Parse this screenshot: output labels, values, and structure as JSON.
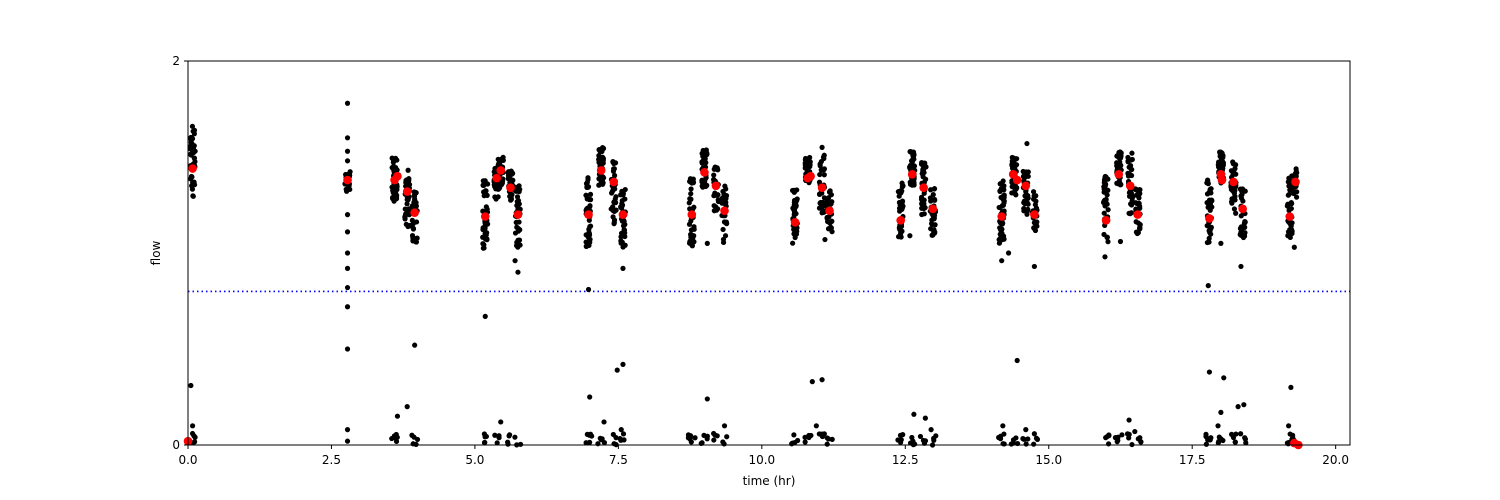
{
  "chart_data": {
    "type": "scatter",
    "title": "",
    "xlabel": "time (hr)",
    "ylabel": "flow",
    "xlim": [
      0,
      20.25
    ],
    "ylim": [
      0,
      2
    ],
    "x_ticks": [
      0,
      2.5,
      5,
      7.5,
      10,
      12.5,
      15,
      17.5,
      20
    ],
    "x_tick_labels": [
      "0.0",
      "2.5",
      "5.0",
      "7.5",
      "10.0",
      "12.5",
      "15.0",
      "17.5",
      "20.0"
    ],
    "y_ticks": [
      0,
      2
    ],
    "y_tick_labels": [
      "0",
      "2"
    ],
    "grid": false,
    "legend": "none",
    "colors": {
      "raw": "#000000",
      "mean": "#ff0000",
      "threshold": "#0000ff"
    },
    "threshold": {
      "y": 0.8,
      "style": "dotted",
      "color": "#0000ff"
    },
    "raw_clusters": [
      {
        "x": 0.08,
        "ymin": 1.29,
        "ymax": 1.67,
        "n": 45,
        "low": 5
      },
      {
        "x": 2.78,
        "ymin": 1.32,
        "ymax": 1.45,
        "n": 18,
        "low": 0
      },
      {
        "x": 3.6,
        "ymin": 1.26,
        "ymax": 1.5,
        "n": 45,
        "low": 6
      },
      {
        "x": 3.82,
        "ymin": 1.13,
        "ymax": 1.44,
        "n": 35,
        "low": 0
      },
      {
        "x": 3.95,
        "ymin": 1.05,
        "ymax": 1.32,
        "n": 30,
        "low": 5
      },
      {
        "x": 5.18,
        "ymin": 1.02,
        "ymax": 1.39,
        "n": 40,
        "low": 5
      },
      {
        "x": 5.38,
        "ymin": 1.28,
        "ymax": 1.45,
        "n": 30,
        "low": 4
      },
      {
        "x": 5.45,
        "ymin": 1.34,
        "ymax": 1.5,
        "n": 30,
        "low": 0
      },
      {
        "x": 5.62,
        "ymin": 1.26,
        "ymax": 1.43,
        "n": 35,
        "low": 4
      },
      {
        "x": 5.75,
        "ymin": 1.03,
        "ymax": 1.36,
        "n": 35,
        "low": 3
      },
      {
        "x": 6.98,
        "ymin": 1.03,
        "ymax": 1.4,
        "n": 45,
        "low": 6
      },
      {
        "x": 7.2,
        "ymin": 1.35,
        "ymax": 1.55,
        "n": 45,
        "low": 5
      },
      {
        "x": 7.42,
        "ymin": 1.15,
        "ymax": 1.5,
        "n": 35,
        "low": 4
      },
      {
        "x": 7.58,
        "ymin": 1.03,
        "ymax": 1.34,
        "n": 35,
        "low": 4
      },
      {
        "x": 8.78,
        "ymin": 1.03,
        "ymax": 1.4,
        "n": 40,
        "low": 6
      },
      {
        "x": 9.0,
        "ymin": 1.34,
        "ymax": 1.55,
        "n": 45,
        "low": 5
      },
      {
        "x": 9.2,
        "ymin": 1.2,
        "ymax": 1.45,
        "n": 30,
        "low": 4
      },
      {
        "x": 9.35,
        "ymin": 1.05,
        "ymax": 1.35,
        "n": 30,
        "low": 3
      },
      {
        "x": 10.58,
        "ymin": 1.05,
        "ymax": 1.33,
        "n": 40,
        "low": 5
      },
      {
        "x": 10.8,
        "ymin": 1.36,
        "ymax": 1.5,
        "n": 40,
        "low": 5
      },
      {
        "x": 11.05,
        "ymin": 1.2,
        "ymax": 1.52,
        "n": 35,
        "low": 5
      },
      {
        "x": 11.18,
        "ymin": 1.1,
        "ymax": 1.33,
        "n": 30,
        "low": 4
      },
      {
        "x": 12.42,
        "ymin": 1.08,
        "ymax": 1.37,
        "n": 40,
        "low": 5
      },
      {
        "x": 12.62,
        "ymin": 1.35,
        "ymax": 1.53,
        "n": 45,
        "low": 5
      },
      {
        "x": 12.82,
        "ymin": 1.2,
        "ymax": 1.5,
        "n": 35,
        "low": 4
      },
      {
        "x": 12.98,
        "ymin": 1.08,
        "ymax": 1.34,
        "n": 30,
        "low": 4
      },
      {
        "x": 14.18,
        "ymin": 1.05,
        "ymax": 1.38,
        "n": 45,
        "low": 6
      },
      {
        "x": 14.4,
        "ymin": 1.3,
        "ymax": 1.5,
        "n": 40,
        "low": 5
      },
      {
        "x": 14.6,
        "ymin": 1.2,
        "ymax": 1.43,
        "n": 35,
        "low": 4
      },
      {
        "x": 14.75,
        "ymin": 1.1,
        "ymax": 1.34,
        "n": 25,
        "low": 4
      },
      {
        "x": 16.0,
        "ymin": 1.05,
        "ymax": 1.4,
        "n": 40,
        "low": 5
      },
      {
        "x": 16.22,
        "ymin": 1.35,
        "ymax": 1.53,
        "n": 45,
        "low": 5
      },
      {
        "x": 16.42,
        "ymin": 1.2,
        "ymax": 1.5,
        "n": 35,
        "low": 4
      },
      {
        "x": 16.55,
        "ymin": 1.1,
        "ymax": 1.34,
        "n": 30,
        "low": 4
      },
      {
        "x": 17.8,
        "ymin": 1.05,
        "ymax": 1.38,
        "n": 40,
        "low": 6
      },
      {
        "x": 18.0,
        "ymin": 1.36,
        "ymax": 1.53,
        "n": 45,
        "low": 5
      },
      {
        "x": 18.22,
        "ymin": 1.2,
        "ymax": 1.48,
        "n": 35,
        "low": 5
      },
      {
        "x": 18.38,
        "ymin": 1.08,
        "ymax": 1.36,
        "n": 30,
        "low": 4
      },
      {
        "x": 19.2,
        "ymin": 1.06,
        "ymax": 1.4,
        "n": 35,
        "low": 5
      },
      {
        "x": 19.28,
        "ymin": 1.28,
        "ymax": 1.48,
        "n": 20,
        "low": 3
      }
    ],
    "raw_outliers": [
      [
        2.78,
        1.78
      ],
      [
        2.78,
        1.6
      ],
      [
        2.78,
        1.53
      ],
      [
        2.78,
        1.48
      ],
      [
        2.78,
        1.2
      ],
      [
        2.78,
        1.11
      ],
      [
        2.78,
        1.0
      ],
      [
        2.78,
        0.92
      ],
      [
        2.78,
        0.82
      ],
      [
        2.78,
        0.72
      ],
      [
        2.78,
        0.5
      ],
      [
        2.78,
        0.08
      ],
      [
        2.78,
        0.02
      ],
      [
        0.05,
        0.31
      ],
      [
        0.08,
        0.1
      ],
      [
        3.65,
        0.15
      ],
      [
        3.82,
        0.2
      ],
      [
        3.95,
        0.52
      ],
      [
        5.18,
        0.67
      ],
      [
        5.7,
        0.96
      ],
      [
        5.75,
        0.9
      ],
      [
        5.45,
        0.12
      ],
      [
        6.98,
        0.81
      ],
      [
        7.0,
        0.25
      ],
      [
        7.25,
        0.12
      ],
      [
        7.48,
        0.39
      ],
      [
        7.58,
        0.42
      ],
      [
        7.58,
        0.92
      ],
      [
        7.55,
        0.08
      ],
      [
        9.05,
        0.24
      ],
      [
        9.35,
        0.1
      ],
      [
        9.05,
        1.05
      ],
      [
        10.88,
        0.33
      ],
      [
        11.05,
        0.34
      ],
      [
        10.95,
        0.1
      ],
      [
        11.05,
        1.55
      ],
      [
        11.1,
        1.07
      ],
      [
        12.65,
        0.16
      ],
      [
        12.85,
        0.14
      ],
      [
        12.95,
        0.08
      ],
      [
        12.58,
        1.09
      ],
      [
        14.18,
        0.96
      ],
      [
        14.2,
        0.1
      ],
      [
        14.45,
        0.44
      ],
      [
        14.62,
        1.57
      ],
      [
        14.75,
        0.93
      ],
      [
        14.6,
        0.08
      ],
      [
        14.3,
        1.0
      ],
      [
        15.98,
        0.98
      ],
      [
        16.25,
        1.06
      ],
      [
        16.5,
        0.07
      ],
      [
        16.4,
        0.13
      ],
      [
        16.45,
        1.52
      ],
      [
        17.78,
        0.83
      ],
      [
        17.8,
        0.38
      ],
      [
        17.95,
        0.1
      ],
      [
        18.05,
        0.35
      ],
      [
        18.0,
        0.17
      ],
      [
        18.3,
        0.2
      ],
      [
        18.4,
        0.21
      ],
      [
        18.35,
        0.93
      ],
      [
        18.0,
        1.05
      ],
      [
        19.22,
        0.3
      ],
      [
        19.18,
        0.1
      ],
      [
        19.28,
        1.03
      ],
      [
        19.25,
        0.05
      ]
    ],
    "mean_points": [
      [
        0.08,
        1.44
      ],
      [
        0.0,
        0.02
      ],
      [
        2.78,
        1.38
      ],
      [
        3.6,
        1.38
      ],
      [
        3.65,
        1.4
      ],
      [
        3.82,
        1.32
      ],
      [
        3.95,
        1.21
      ],
      [
        5.18,
        1.19
      ],
      [
        5.38,
        1.39
      ],
      [
        5.45,
        1.43
      ],
      [
        5.62,
        1.34
      ],
      [
        5.75,
        1.2
      ],
      [
        6.98,
        1.2
      ],
      [
        7.2,
        1.43
      ],
      [
        7.42,
        1.37
      ],
      [
        7.58,
        1.2
      ],
      [
        8.78,
        1.2
      ],
      [
        9.0,
        1.42
      ],
      [
        9.2,
        1.35
      ],
      [
        9.35,
        1.22
      ],
      [
        10.58,
        1.16
      ],
      [
        10.8,
        1.39
      ],
      [
        10.85,
        1.4
      ],
      [
        11.05,
        1.34
      ],
      [
        11.18,
        1.22
      ],
      [
        12.42,
        1.17
      ],
      [
        12.62,
        1.41
      ],
      [
        12.82,
        1.34
      ],
      [
        12.98,
        1.23
      ],
      [
        14.18,
        1.19
      ],
      [
        14.38,
        1.41
      ],
      [
        14.45,
        1.38
      ],
      [
        14.6,
        1.35
      ],
      [
        14.75,
        1.2
      ],
      [
        16.0,
        1.17
      ],
      [
        16.22,
        1.41
      ],
      [
        16.42,
        1.35
      ],
      [
        16.55,
        1.2
      ],
      [
        17.8,
        1.18
      ],
      [
        18.0,
        1.41
      ],
      [
        18.02,
        1.38
      ],
      [
        18.22,
        1.37
      ],
      [
        18.38,
        1.23
      ],
      [
        19.2,
        1.19
      ],
      [
        19.3,
        1.37
      ],
      [
        19.28,
        0.01
      ],
      [
        19.35,
        0.0
      ]
    ]
  }
}
